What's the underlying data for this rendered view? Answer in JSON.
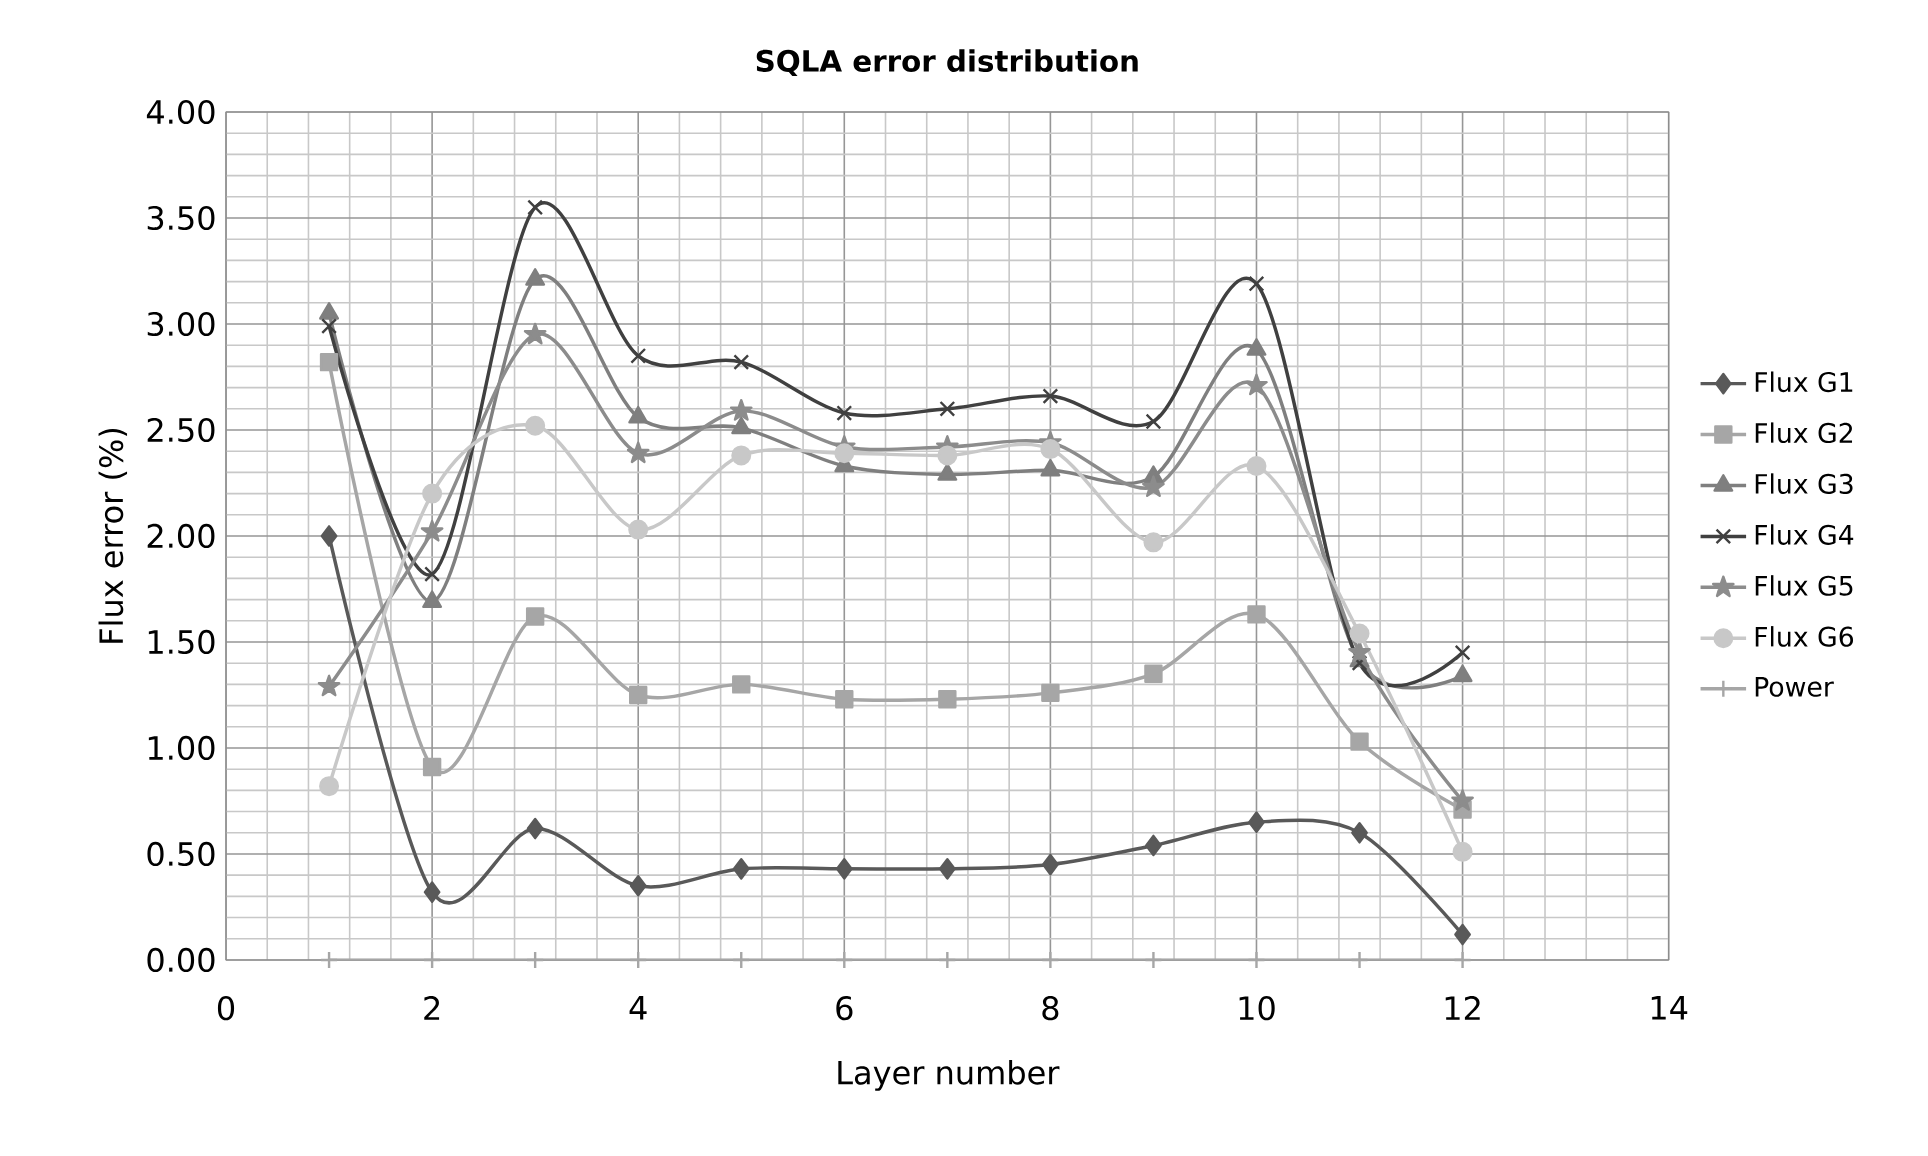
{
  "chart_data": {
    "type": "line",
    "title": "SQLA error distribution",
    "xlabel": "Layer number",
    "ylabel": "Flux error (%)",
    "x": [
      1,
      2,
      3,
      4,
      5,
      6,
      7,
      8,
      9,
      10,
      11,
      12
    ],
    "xlim": [
      0,
      14
    ],
    "xticks": [
      0,
      2,
      4,
      6,
      8,
      10,
      12,
      14
    ],
    "ylim": [
      0,
      4
    ],
    "yticks": [
      {
        "value": 0,
        "label": "0.00"
      },
      {
        "value": 0.5,
        "label": "0.50"
      },
      {
        "value": 1,
        "label": "1.00"
      },
      {
        "value": 1.5,
        "label": "1.50"
      },
      {
        "value": 2,
        "label": "2.00"
      },
      {
        "value": 2.5,
        "label": "2.50"
      },
      {
        "value": 3,
        "label": "3.00"
      },
      {
        "value": 3.5,
        "label": "3.50"
      },
      {
        "value": 4,
        "label": "4.00"
      }
    ],
    "grid": true,
    "legend": "right",
    "line_style": "solid",
    "series": [
      {
        "name": "Flux G1",
        "color": "#595959",
        "marker": "diamond",
        "values": [
          2.0,
          0.32,
          0.62,
          0.35,
          0.43,
          0.43,
          0.43,
          0.45,
          0.54,
          0.65,
          0.6,
          0.12
        ]
      },
      {
        "name": "Flux G2",
        "color": "#a6a6a6",
        "marker": "square",
        "values": [
          2.82,
          0.91,
          1.62,
          1.25,
          1.3,
          1.23,
          1.23,
          1.26,
          1.35,
          1.63,
          1.03,
          0.71
        ]
      },
      {
        "name": "Flux G3",
        "color": "#7f7f7f",
        "marker": "triangle",
        "values": [
          3.05,
          1.69,
          3.21,
          2.56,
          2.51,
          2.33,
          2.29,
          2.31,
          2.28,
          2.88,
          1.41,
          1.34
        ]
      },
      {
        "name": "Flux G4",
        "color": "#404040",
        "marker": "cross",
        "values": [
          2.99,
          1.82,
          3.55,
          2.85,
          2.82,
          2.58,
          2.6,
          2.66,
          2.54,
          3.19,
          1.4,
          1.45
        ]
      },
      {
        "name": "Flux G5",
        "color": "#8c8c8c",
        "marker": "star",
        "values": [
          1.29,
          2.02,
          2.95,
          2.39,
          2.59,
          2.42,
          2.42,
          2.44,
          2.23,
          2.71,
          1.45,
          0.75
        ]
      },
      {
        "name": "Flux G6",
        "color": "#c8c8c8",
        "marker": "circle",
        "values": [
          0.82,
          2.2,
          2.52,
          2.03,
          2.38,
          2.39,
          2.38,
          2.41,
          1.97,
          2.33,
          1.54,
          0.51
        ]
      },
      {
        "name": "Power",
        "color": "#a6a6a6",
        "marker": "cross",
        "values": [
          0,
          0,
          0,
          0,
          0,
          0,
          0,
          0,
          0,
          0,
          0,
          0
        ]
      }
    ]
  }
}
